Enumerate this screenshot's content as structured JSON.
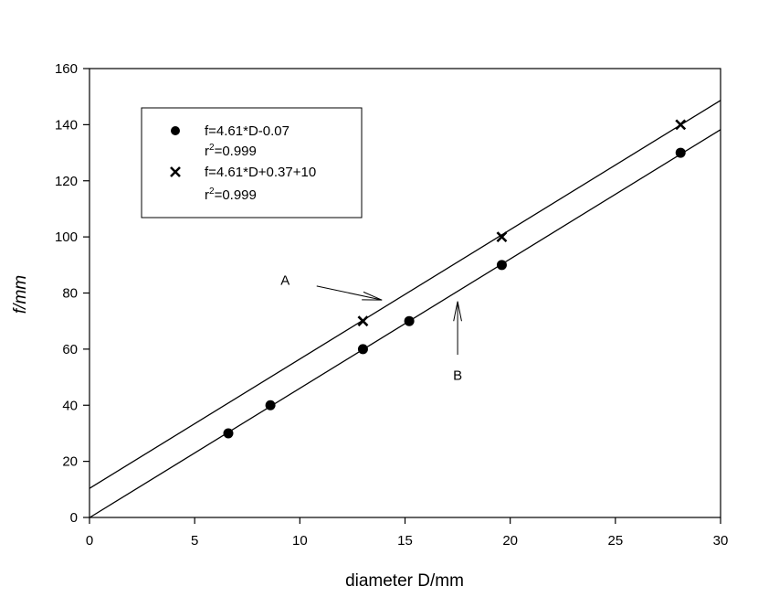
{
  "chart_data": {
    "type": "scatter",
    "xlabel": "diameter D/mm",
    "ylabel": "f/mm",
    "xlim": [
      0,
      30
    ],
    "ylim": [
      0,
      160
    ],
    "xticks": [
      0,
      5,
      10,
      15,
      20,
      25,
      30
    ],
    "yticks": [
      0,
      20,
      40,
      60,
      80,
      100,
      120,
      140,
      160
    ],
    "grid": false,
    "legend_position": "top-left",
    "series": [
      {
        "marker": "circle",
        "legend": [
          "f=4.61*D-0.07",
          "r",
          "2",
          "=0.999"
        ],
        "points": [
          [
            6.6,
            30
          ],
          [
            8.6,
            40
          ],
          [
            13.0,
            60
          ],
          [
            15.2,
            70
          ],
          [
            19.6,
            90
          ],
          [
            28.1,
            130
          ]
        ],
        "fit": {
          "slope": 4.61,
          "intercept": -0.07
        }
      },
      {
        "marker": "x",
        "legend": [
          "f=4.61*D+0.37+10",
          "r",
          "2",
          "=0.999"
        ],
        "points": [
          [
            13.0,
            70
          ],
          [
            19.6,
            100
          ],
          [
            28.1,
            140
          ]
        ],
        "fit": {
          "slope": 4.61,
          "intercept": 10.37
        }
      }
    ],
    "annotations": [
      {
        "label": "A",
        "text_at": [
          9.3,
          83
        ],
        "arrow_from": [
          10.8,
          82.5
        ],
        "arrow_to": [
          13.9,
          77.5
        ]
      },
      {
        "label": "B",
        "text_at": [
          17.5,
          49
        ],
        "arrow_from": [
          17.5,
          58
        ],
        "arrow_to": [
          17.5,
          77
        ]
      }
    ]
  }
}
